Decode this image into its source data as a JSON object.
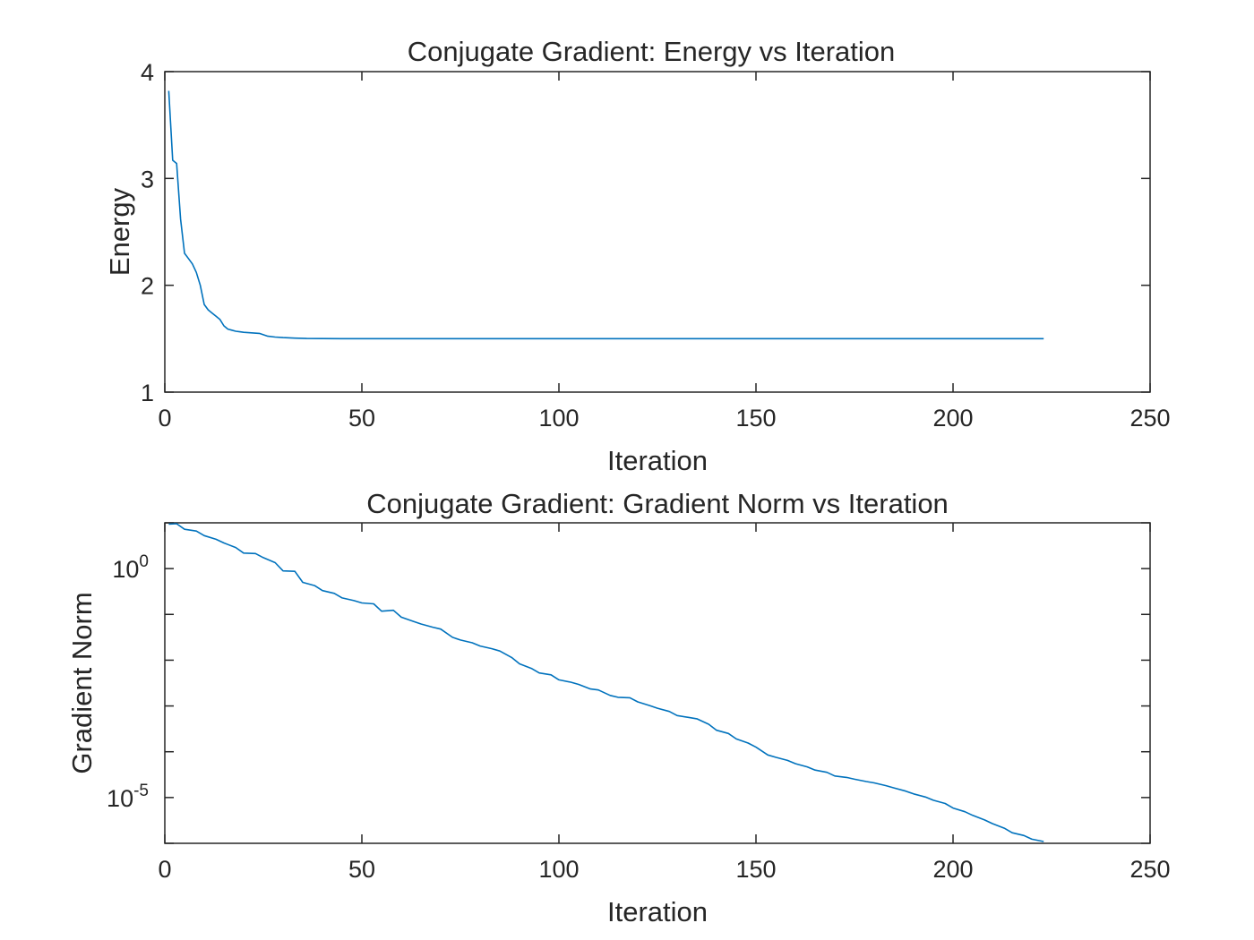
{
  "chart_data": [
    {
      "type": "line",
      "title": "Conjugate Gradient: Energy vs Iteration",
      "xlabel": "Iteration",
      "ylabel": "Energy",
      "xlim": [
        0,
        250
      ],
      "ylim": [
        1,
        4
      ],
      "xticks": [
        0,
        50,
        100,
        150,
        200,
        250
      ],
      "xtick_labels": [
        "0",
        "50",
        "100",
        "150",
        "200",
        "250"
      ],
      "yticks": [
        1,
        2,
        3,
        4
      ],
      "ytick_labels": [
        "1",
        "2",
        "3",
        "4"
      ],
      "yscale": "linear",
      "grid": false,
      "legend": false,
      "color": "#0072BD",
      "series": [
        {
          "x": [
            1,
            2,
            3,
            4,
            5,
            6,
            7,
            8,
            9,
            10,
            11,
            12,
            13,
            14,
            15,
            16,
            17,
            18,
            19,
            20,
            22,
            24,
            26,
            28,
            30,
            33,
            36,
            40,
            45,
            50,
            55,
            60,
            80,
            100,
            130,
            160,
            190,
            223
          ],
          "y": [
            3.82,
            3.17,
            3.14,
            2.62,
            2.3,
            2.25,
            2.2,
            2.12,
            2.0,
            1.82,
            1.77,
            1.74,
            1.71,
            1.68,
            1.62,
            1.59,
            1.58,
            1.57,
            1.565,
            1.56,
            1.555,
            1.55,
            1.525,
            1.515,
            1.51,
            1.505,
            1.502,
            1.501,
            1.5,
            1.5,
            1.5,
            1.5,
            1.5,
            1.5,
            1.5,
            1.5,
            1.5,
            1.5
          ]
        }
      ]
    },
    {
      "type": "line",
      "title": "Conjugate Gradient: Gradient Norm vs Iteration",
      "xlabel": "Iteration",
      "ylabel": "Gradient Norm",
      "xlim": [
        0,
        250
      ],
      "ylim_log10": [
        -6,
        1
      ],
      "xticks": [
        0,
        50,
        100,
        150,
        200,
        250
      ],
      "xtick_labels": [
        "0",
        "50",
        "100",
        "150",
        "200",
        "250"
      ],
      "yticks": [
        1,
        1e-05
      ],
      "ytick_labels": [
        {
          "base": "10",
          "exp": "0"
        },
        {
          "base": "10",
          "exp": "-5"
        }
      ],
      "yscale": "log",
      "grid": false,
      "legend": false,
      "color": "#0072BD",
      "series": [
        {
          "x": [
            1,
            3,
            5,
            8,
            10,
            13,
            15,
            18,
            20,
            23,
            25,
            28,
            30,
            33,
            35,
            38,
            40,
            43,
            45,
            48,
            50,
            53,
            55,
            58,
            60,
            63,
            65,
            68,
            70,
            73,
            75,
            78,
            80,
            83,
            85,
            88,
            90,
            93,
            95,
            98,
            100,
            103,
            105,
            108,
            110,
            113,
            115,
            118,
            120,
            123,
            125,
            128,
            130,
            133,
            135,
            138,
            140,
            143,
            145,
            148,
            150,
            153,
            155,
            158,
            160,
            163,
            165,
            168,
            170,
            173,
            175,
            178,
            180,
            183,
            185,
            188,
            190,
            193,
            195,
            198,
            200,
            203,
            205,
            208,
            210,
            213,
            215,
            218,
            220,
            223
          ],
          "y_log10": [
            0.97,
            0.98,
            0.86,
            0.82,
            0.72,
            0.64,
            0.56,
            0.46,
            0.34,
            0.33,
            0.24,
            0.13,
            -0.05,
            -0.06,
            -0.3,
            -0.37,
            -0.48,
            -0.54,
            -0.64,
            -0.7,
            -0.75,
            -0.77,
            -0.93,
            -0.91,
            -1.06,
            -1.15,
            -1.21,
            -1.28,
            -1.32,
            -1.5,
            -1.56,
            -1.62,
            -1.69,
            -1.75,
            -1.8,
            -1.94,
            -2.08,
            -2.18,
            -2.28,
            -2.32,
            -2.43,
            -2.48,
            -2.53,
            -2.63,
            -2.65,
            -2.77,
            -2.81,
            -2.82,
            -2.91,
            -2.99,
            -3.05,
            -3.12,
            -3.21,
            -3.25,
            -3.28,
            -3.4,
            -3.53,
            -3.6,
            -3.72,
            -3.81,
            -3.9,
            -4.07,
            -4.12,
            -4.19,
            -4.26,
            -4.33,
            -4.4,
            -4.45,
            -4.53,
            -4.56,
            -4.6,
            -4.65,
            -4.68,
            -4.74,
            -4.79,
            -4.86,
            -4.92,
            -4.99,
            -5.06,
            -5.13,
            -5.23,
            -5.31,
            -5.39,
            -5.49,
            -5.57,
            -5.67,
            -5.77,
            -5.83,
            -5.91,
            -5.96
          ]
        }
      ]
    }
  ]
}
